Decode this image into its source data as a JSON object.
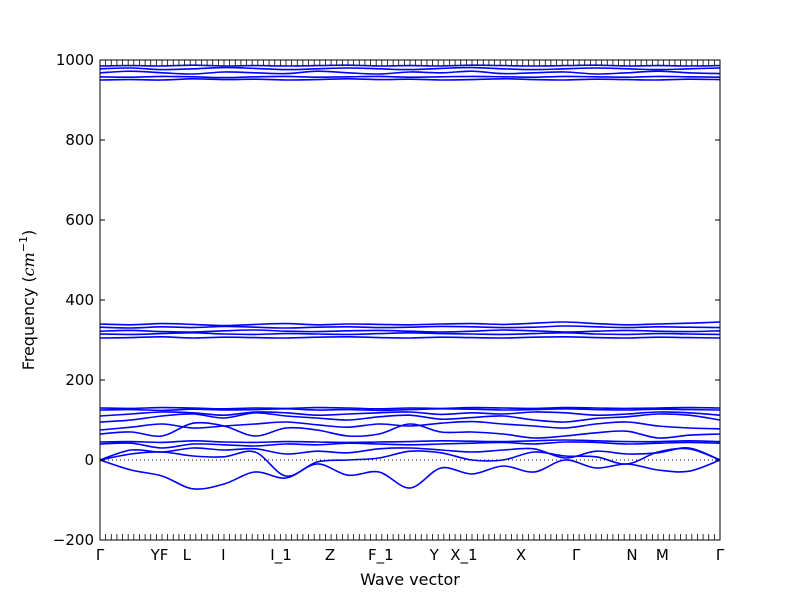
{
  "chart_data": {
    "type": "line",
    "title": "",
    "xlabel": "Wave vector",
    "ylabel": "Frequency (cm⁻¹)",
    "ylabel_text": "Frequency (",
    "ylabel_unit": "cm",
    "ylabel_exp": "−1",
    "ylabel_close": ")",
    "ylim": [
      -200,
      1000
    ],
    "yticks": [
      -200,
      0,
      200,
      400,
      600,
      800,
      1000
    ],
    "xlim": [
      0,
      1
    ],
    "grid": false,
    "legend": "none",
    "line_color": "#0000ff",
    "zero_line": "dotted",
    "high_symmetry_points": [
      {
        "label": "Γ",
        "x": 0.0
      },
      {
        "label": "YF",
        "x": 0.096
      },
      {
        "label": "L",
        "x": 0.14
      },
      {
        "label": "I",
        "x": 0.199
      },
      {
        "label": "I_1",
        "x": 0.292
      },
      {
        "label": "Z",
        "x": 0.371
      },
      {
        "label": "F_1",
        "x": 0.453
      },
      {
        "label": "Y",
        "x": 0.539
      },
      {
        "label": "X_1",
        "x": 0.587
      },
      {
        "label": "X",
        "x": 0.679
      },
      {
        "label": "Γ",
        "x": 0.768
      },
      {
        "label": "N",
        "x": 0.858
      },
      {
        "label": "M",
        "x": 0.907
      },
      {
        "label": "Γ",
        "x": 1.0
      }
    ],
    "series": [
      {
        "x": [
          0,
          0.05,
          0.1,
          0.15,
          0.2,
          0.25,
          0.3,
          0.35,
          0.4,
          0.45,
          0.5,
          0.55,
          0.6,
          0.65,
          0.7,
          0.75,
          0.8,
          0.85,
          0.9,
          0.95,
          1.0
        ],
        "values": [
          0,
          -25,
          -40,
          -72,
          -60,
          -30,
          -45,
          -10,
          -38,
          -30,
          -70,
          -20,
          -35,
          -15,
          -30,
          0,
          -20,
          -10,
          -25,
          -28,
          0
        ]
      },
      {
        "x": [
          0,
          0.05,
          0.1,
          0.15,
          0.2,
          0.25,
          0.3,
          0.35,
          0.4,
          0.45,
          0.5,
          0.55,
          0.6,
          0.65,
          0.7,
          0.75,
          0.8,
          0.85,
          0.9,
          0.95,
          1.0
        ],
        "values": [
          0,
          15,
          20,
          10,
          8,
          20,
          -40,
          -5,
          0,
          5,
          22,
          18,
          0,
          0,
          20,
          10,
          8,
          -10,
          20,
          28,
          0
        ]
      },
      {
        "x": [
          0,
          0.05,
          0.1,
          0.15,
          0.2,
          0.25,
          0.3,
          0.35,
          0.4,
          0.45,
          0.5,
          0.55,
          0.6,
          0.65,
          0.7,
          0.75,
          0.8,
          0.85,
          0.9,
          0.95,
          1.0
        ],
        "values": [
          0,
          25,
          20,
          30,
          25,
          28,
          15,
          22,
          18,
          28,
          30,
          25,
          20,
          25,
          28,
          5,
          22,
          15,
          18,
          30,
          0
        ]
      },
      {
        "x": [
          0,
          0.05,
          0.1,
          0.15,
          0.2,
          0.25,
          0.3,
          0.35,
          0.4,
          0.45,
          0.5,
          0.55,
          0.6,
          0.65,
          0.7,
          0.75,
          0.8,
          0.85,
          0.9,
          0.95,
          1.0
        ],
        "values": [
          40,
          42,
          30,
          40,
          38,
          35,
          40,
          38,
          42,
          40,
          38,
          40,
          42,
          44,
          40,
          45,
          44,
          40,
          42,
          44,
          42
        ]
      },
      {
        "x": [
          0,
          0.05,
          0.1,
          0.15,
          0.2,
          0.25,
          0.3,
          0.35,
          0.4,
          0.45,
          0.5,
          0.55,
          0.6,
          0.65,
          0.7,
          0.75,
          0.8,
          0.85,
          0.9,
          0.95,
          1.0
        ],
        "values": [
          45,
          46,
          44,
          48,
          45,
          44,
          46,
          45,
          44,
          45,
          46,
          48,
          47,
          46,
          48,
          50,
          48,
          46,
          46,
          48,
          46
        ]
      },
      {
        "x": [
          0,
          0.05,
          0.1,
          0.15,
          0.2,
          0.25,
          0.3,
          0.35,
          0.4,
          0.45,
          0.5,
          0.55,
          0.6,
          0.65,
          0.7,
          0.75,
          0.8,
          0.85,
          0.9,
          0.95,
          1.0
        ],
        "values": [
          65,
          70,
          60,
          92,
          85,
          60,
          80,
          75,
          60,
          65,
          90,
          70,
          70,
          65,
          55,
          60,
          68,
          72,
          55,
          62,
          65
        ]
      },
      {
        "x": [
          0,
          0.05,
          0.1,
          0.15,
          0.2,
          0.25,
          0.3,
          0.35,
          0.4,
          0.45,
          0.5,
          0.55,
          0.6,
          0.65,
          0.7,
          0.75,
          0.8,
          0.85,
          0.9,
          0.95,
          1.0
        ],
        "values": [
          75,
          82,
          90,
          80,
          85,
          90,
          95,
          88,
          82,
          90,
          85,
          92,
          96,
          90,
          85,
          80,
          90,
          95,
          85,
          80,
          78
        ]
      },
      {
        "x": [
          0,
          0.05,
          0.1,
          0.15,
          0.2,
          0.25,
          0.3,
          0.35,
          0.4,
          0.45,
          0.5,
          0.55,
          0.6,
          0.65,
          0.7,
          0.75,
          0.8,
          0.85,
          0.9,
          0.95,
          1.0
        ],
        "values": [
          95,
          100,
          110,
          115,
          105,
          118,
          110,
          105,
          100,
          108,
          112,
          102,
          106,
          110,
          100,
          95,
          104,
          108,
          115,
          112,
          100
        ]
      },
      {
        "x": [
          0,
          0.05,
          0.1,
          0.15,
          0.2,
          0.25,
          0.3,
          0.35,
          0.4,
          0.45,
          0.5,
          0.55,
          0.6,
          0.65,
          0.7,
          0.75,
          0.8,
          0.85,
          0.9,
          0.95,
          1.0
        ],
        "values": [
          110,
          115,
          120,
          118,
          112,
          120,
          118,
          112,
          115,
          118,
          120,
          114,
          118,
          115,
          120,
          118,
          112,
          115,
          120,
          118,
          112
        ]
      },
      {
        "x": [
          0,
          0.05,
          0.1,
          0.15,
          0.2,
          0.25,
          0.3,
          0.35,
          0.4,
          0.45,
          0.5,
          0.55,
          0.6,
          0.65,
          0.7,
          0.75,
          0.8,
          0.85,
          0.9,
          0.95,
          1.0
        ],
        "values": [
          125,
          126,
          124,
          127,
          125,
          126,
          128,
          125,
          126,
          124,
          126,
          128,
          127,
          125,
          126,
          128,
          126,
          125,
          127,
          126,
          125
        ]
      },
      {
        "x": [
          0,
          0.05,
          0.1,
          0.15,
          0.2,
          0.25,
          0.3,
          0.35,
          0.4,
          0.45,
          0.5,
          0.55,
          0.6,
          0.65,
          0.7,
          0.75,
          0.8,
          0.85,
          0.9,
          0.95,
          1.0
        ],
        "values": [
          130,
          129,
          131,
          130,
          128,
          130,
          129,
          131,
          130,
          128,
          130,
          129,
          131,
          130,
          129,
          131,
          130,
          129,
          130,
          131,
          130
        ]
      },
      {
        "x": [
          0,
          0.05,
          0.1,
          0.15,
          0.2,
          0.25,
          0.3,
          0.35,
          0.4,
          0.45,
          0.5,
          0.55,
          0.6,
          0.65,
          0.7,
          0.75,
          0.8,
          0.85,
          0.9,
          0.95,
          1.0
        ],
        "values": [
          305,
          306,
          308,
          305,
          307,
          306,
          305,
          307,
          308,
          306,
          305,
          307,
          306,
          305,
          307,
          308,
          306,
          305,
          307,
          306,
          305
        ]
      },
      {
        "x": [
          0,
          0.05,
          0.1,
          0.15,
          0.2,
          0.25,
          0.3,
          0.35,
          0.4,
          0.45,
          0.5,
          0.55,
          0.6,
          0.65,
          0.7,
          0.75,
          0.8,
          0.85,
          0.9,
          0.95,
          1.0
        ],
        "values": [
          315,
          314,
          316,
          318,
          315,
          314,
          316,
          315,
          314,
          316,
          318,
          316,
          315,
          314,
          316,
          318,
          315,
          314,
          316,
          315,
          314
        ]
      },
      {
        "x": [
          0,
          0.05,
          0.1,
          0.15,
          0.2,
          0.25,
          0.3,
          0.35,
          0.4,
          0.45,
          0.5,
          0.55,
          0.6,
          0.65,
          0.7,
          0.75,
          0.8,
          0.85,
          0.9,
          0.95,
          1.0
        ],
        "values": [
          322,
          324,
          321,
          320,
          323,
          325,
          322,
          321,
          323,
          324,
          322,
          320,
          322,
          325,
          323,
          320,
          322,
          324,
          322,
          321,
          323
        ]
      },
      {
        "x": [
          0,
          0.05,
          0.1,
          0.15,
          0.2,
          0.25,
          0.3,
          0.35,
          0.4,
          0.45,
          0.5,
          0.55,
          0.6,
          0.65,
          0.7,
          0.75,
          0.8,
          0.85,
          0.9,
          0.95,
          1.0
        ],
        "values": [
          332,
          330,
          333,
          331,
          334,
          332,
          330,
          332,
          333,
          331,
          332,
          334,
          333,
          331,
          332,
          335,
          333,
          331,
          333,
          332,
          331
        ]
      },
      {
        "x": [
          0,
          0.05,
          0.1,
          0.15,
          0.2,
          0.25,
          0.3,
          0.35,
          0.4,
          0.45,
          0.5,
          0.55,
          0.6,
          0.65,
          0.7,
          0.75,
          0.8,
          0.85,
          0.9,
          0.95,
          1.0
        ],
        "values": [
          340,
          338,
          341,
          339,
          336,
          339,
          341,
          338,
          340,
          339,
          338,
          340,
          341,
          339,
          342,
          345,
          341,
          338,
          340,
          342,
          345
        ]
      },
      {
        "x": [
          0,
          0.05,
          0.1,
          0.15,
          0.2,
          0.25,
          0.3,
          0.35,
          0.4,
          0.45,
          0.5,
          0.55,
          0.6,
          0.65,
          0.7,
          0.75,
          0.8,
          0.85,
          0.9,
          0.95,
          1.0
        ],
        "values": [
          950,
          951,
          950,
          953,
          951,
          952,
          950,
          951,
          953,
          951,
          952,
          950,
          951,
          953,
          951,
          950,
          952,
          951,
          950,
          952,
          951
        ]
      },
      {
        "x": [
          0,
          0.05,
          0.1,
          0.15,
          0.2,
          0.25,
          0.3,
          0.35,
          0.4,
          0.45,
          0.5,
          0.55,
          0.6,
          0.65,
          0.7,
          0.75,
          0.8,
          0.85,
          0.9,
          0.95,
          1.0
        ],
        "values": [
          958,
          957,
          959,
          958,
          956,
          958,
          959,
          957,
          958,
          959,
          957,
          958,
          959,
          958,
          957,
          959,
          958,
          957,
          959,
          958,
          957
        ]
      },
      {
        "x": [
          0,
          0.05,
          0.1,
          0.15,
          0.2,
          0.25,
          0.3,
          0.35,
          0.4,
          0.45,
          0.5,
          0.55,
          0.6,
          0.65,
          0.7,
          0.75,
          0.8,
          0.85,
          0.9,
          0.95,
          1.0
        ],
        "values": [
          968,
          972,
          968,
          965,
          970,
          968,
          966,
          972,
          968,
          965,
          970,
          968,
          972,
          966,
          968,
          970,
          965,
          968,
          972,
          968,
          966
        ]
      },
      {
        "x": [
          0,
          0.05,
          0.1,
          0.15,
          0.2,
          0.25,
          0.3,
          0.35,
          0.4,
          0.45,
          0.5,
          0.55,
          0.6,
          0.65,
          0.7,
          0.75,
          0.8,
          0.85,
          0.9,
          0.95,
          1.0
        ],
        "values": [
          978,
          980,
          976,
          978,
          981,
          979,
          976,
          978,
          980,
          978,
          976,
          979,
          981,
          978,
          976,
          978,
          980,
          978,
          976,
          978,
          980
        ]
      },
      {
        "x": [
          0,
          0.05,
          0.1,
          0.15,
          0.2,
          0.25,
          0.3,
          0.35,
          0.4,
          0.45,
          0.5,
          0.55,
          0.6,
          0.65,
          0.7,
          0.75,
          0.8,
          0.85,
          0.9,
          0.95,
          1.0
        ],
        "values": [
          985,
          986,
          985,
          987,
          985,
          986,
          985,
          986,
          987,
          985,
          986,
          985,
          987,
          986,
          985,
          986,
          987,
          985,
          986,
          985,
          986
        ]
      }
    ]
  }
}
